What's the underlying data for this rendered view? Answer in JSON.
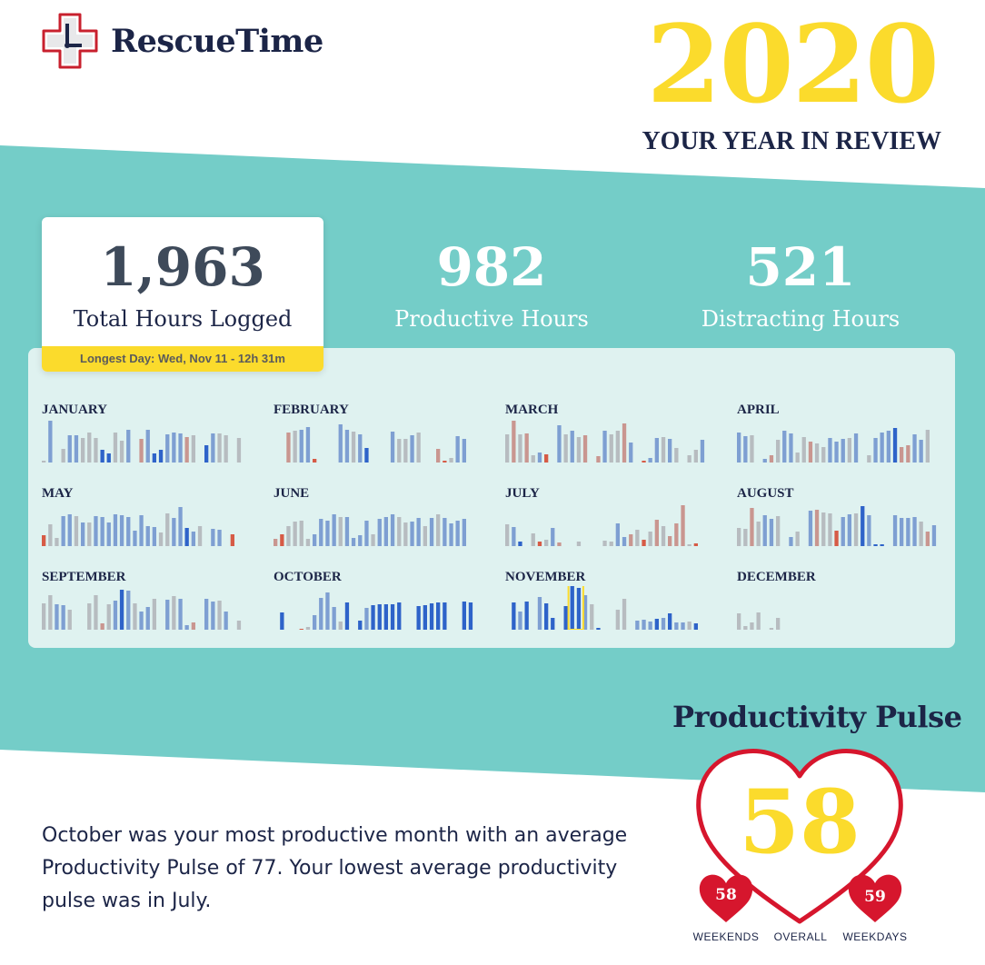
{
  "brand": {
    "name": "RescueTime",
    "logo_icon": "clock-cross-icon"
  },
  "header": {
    "year": "2020",
    "subtitle": "YOUR YEAR IN REVIEW"
  },
  "stats": {
    "total": {
      "value": "1,963",
      "label": "Total Hours Logged"
    },
    "productive": {
      "value": "982",
      "label": "Productive Hours"
    },
    "distracting": {
      "value": "521",
      "label": "Distracting Hours"
    },
    "longest_day": "Longest Day: Wed, Nov 11 - 12h 31m"
  },
  "colors": {
    "teal": "#74cdc8",
    "panel": "#dff2f0",
    "yellow": "#fbdb2c",
    "navy": "#1c2547",
    "heart_red": "#d6162d",
    "bar_gray": "#b7bcc0",
    "bar_lightblue": "#7e9fd2",
    "bar_blue": "#2e63c9",
    "bar_rose": "#c99690",
    "bar_red": "#d65b46"
  },
  "months": [
    {
      "name": "JANUARY",
      "bars": [
        [
          2,
          "g"
        ],
        [
          46,
          "lb"
        ],
        [
          0,
          "g"
        ],
        [
          15,
          "g"
        ],
        [
          30,
          "lb"
        ],
        [
          30,
          "lb"
        ],
        [
          27,
          "g"
        ],
        [
          33,
          "g"
        ],
        [
          27,
          "g"
        ],
        [
          14,
          "b"
        ],
        [
          10,
          "b"
        ],
        [
          33,
          "g"
        ],
        [
          24,
          "g"
        ],
        [
          36,
          "lb"
        ],
        [
          0,
          "g"
        ],
        [
          26,
          "r"
        ],
        [
          36,
          "lb"
        ],
        [
          10,
          "b"
        ],
        [
          14,
          "b"
        ],
        [
          31,
          "lb"
        ],
        [
          33,
          "lb"
        ],
        [
          32,
          "lb"
        ],
        [
          28,
          "r"
        ],
        [
          30,
          "g"
        ],
        [
          0,
          "g"
        ],
        [
          19,
          "b"
        ],
        [
          32,
          "lb"
        ],
        [
          32,
          "g"
        ],
        [
          30,
          "g"
        ],
        [
          0,
          "g"
        ],
        [
          27,
          "g"
        ]
      ]
    },
    {
      "name": "FEBRUARY",
      "bars": [
        [
          0,
          "g"
        ],
        [
          0,
          "g"
        ],
        [
          33,
          "r"
        ],
        [
          35,
          "g"
        ],
        [
          36,
          "lb"
        ],
        [
          39,
          "lb"
        ],
        [
          4,
          "rd"
        ],
        [
          0,
          "g"
        ],
        [
          0,
          "g"
        ],
        [
          0,
          "g"
        ],
        [
          42,
          "lb"
        ],
        [
          36,
          "lb"
        ],
        [
          34,
          "g"
        ],
        [
          31,
          "lb"
        ],
        [
          16,
          "b"
        ],
        [
          0,
          "g"
        ],
        [
          0,
          "g"
        ],
        [
          0,
          "g"
        ],
        [
          34,
          "lb"
        ],
        [
          26,
          "g"
        ],
        [
          26,
          "g"
        ],
        [
          30,
          "lb"
        ],
        [
          33,
          "g"
        ],
        [
          0,
          "g"
        ],
        [
          0,
          "g"
        ],
        [
          15,
          "r"
        ],
        [
          2,
          "rd"
        ],
        [
          5,
          "g"
        ],
        [
          29,
          "lb"
        ],
        [
          26,
          "lb"
        ]
      ]
    },
    {
      "name": "MARCH",
      "bars": [
        [
          31,
          "g"
        ],
        [
          46,
          "r"
        ],
        [
          31,
          "g"
        ],
        [
          32,
          "r"
        ],
        [
          8,
          "g"
        ],
        [
          11,
          "lb"
        ],
        [
          9,
          "rd"
        ],
        [
          0,
          "g"
        ],
        [
          41,
          "lb"
        ],
        [
          31,
          "g"
        ],
        [
          35,
          "lb"
        ],
        [
          28,
          "g"
        ],
        [
          30,
          "r"
        ],
        [
          0,
          "g"
        ],
        [
          7,
          "r"
        ],
        [
          35,
          "lb"
        ],
        [
          31,
          "g"
        ],
        [
          35,
          "g"
        ],
        [
          43,
          "r"
        ],
        [
          22,
          "lb"
        ],
        [
          0,
          "g"
        ],
        [
          2,
          "rd"
        ],
        [
          5,
          "lb"
        ],
        [
          27,
          "lb"
        ],
        [
          28,
          "g"
        ],
        [
          26,
          "lb"
        ],
        [
          16,
          "g"
        ],
        [
          0,
          "g"
        ],
        [
          8,
          "g"
        ],
        [
          14,
          "g"
        ],
        [
          25,
          "lb"
        ],
        [
          25,
          "lb"
        ]
      ]
    },
    {
      "name": "APRIL",
      "bars": [
        [
          33,
          "lb"
        ],
        [
          29,
          "lb"
        ],
        [
          30,
          "g"
        ],
        [
          0,
          "g"
        ],
        [
          4,
          "lb"
        ],
        [
          8,
          "r"
        ],
        [
          25,
          "g"
        ],
        [
          35,
          "lb"
        ],
        [
          32,
          "lb"
        ],
        [
          11,
          "g"
        ],
        [
          28,
          "g"
        ],
        [
          23,
          "r"
        ],
        [
          21,
          "g"
        ],
        [
          17,
          "g"
        ],
        [
          27,
          "lb"
        ],
        [
          23,
          "lb"
        ],
        [
          26,
          "lb"
        ],
        [
          27,
          "g"
        ],
        [
          32,
          "lb"
        ],
        [
          0,
          "g"
        ],
        [
          8,
          "g"
        ],
        [
          27,
          "lb"
        ],
        [
          33,
          "lb"
        ],
        [
          35,
          "lb"
        ],
        [
          38,
          "b"
        ],
        [
          17,
          "r"
        ],
        [
          19,
          "r"
        ],
        [
          31,
          "lb"
        ],
        [
          25,
          "lb"
        ],
        [
          36,
          "g"
        ]
      ]
    },
    {
      "name": "MAY",
      "bars": [
        [
          12,
          "rd"
        ],
        [
          24,
          "g"
        ],
        [
          9,
          "g"
        ],
        [
          33,
          "lb"
        ],
        [
          35,
          "lb"
        ],
        [
          33,
          "g"
        ],
        [
          26,
          "lb"
        ],
        [
          26,
          "g"
        ],
        [
          33,
          "lb"
        ],
        [
          32,
          "lb"
        ],
        [
          26,
          "lb"
        ],
        [
          35,
          "lb"
        ],
        [
          34,
          "lb"
        ],
        [
          32,
          "lb"
        ],
        [
          17,
          "lb"
        ],
        [
          34,
          "lb"
        ],
        [
          22,
          "lb"
        ],
        [
          21,
          "lb"
        ],
        [
          15,
          "g"
        ],
        [
          36,
          "g"
        ],
        [
          31,
          "lb"
        ],
        [
          43,
          "lb"
        ],
        [
          20,
          "b"
        ],
        [
          16,
          "lb"
        ],
        [
          22,
          "g"
        ],
        [
          0,
          "g"
        ],
        [
          19,
          "lb"
        ],
        [
          18,
          "lb"
        ],
        [
          0,
          "g"
        ],
        [
          13,
          "rd"
        ]
      ]
    },
    {
      "name": "JUNE",
      "bars": [
        [
          8,
          "r"
        ],
        [
          13,
          "rd"
        ],
        [
          22,
          "g"
        ],
        [
          27,
          "g"
        ],
        [
          28,
          "g"
        ],
        [
          8,
          "g"
        ],
        [
          13,
          "lb"
        ],
        [
          30,
          "lb"
        ],
        [
          28,
          "lb"
        ],
        [
          35,
          "lb"
        ],
        [
          32,
          "g"
        ],
        [
          32,
          "lb"
        ],
        [
          9,
          "lb"
        ],
        [
          12,
          "lb"
        ],
        [
          28,
          "lb"
        ],
        [
          13,
          "g"
        ],
        [
          30,
          "lb"
        ],
        [
          32,
          "lb"
        ],
        [
          35,
          "lb"
        ],
        [
          32,
          "g"
        ],
        [
          26,
          "g"
        ],
        [
          27,
          "lb"
        ],
        [
          31,
          "lb"
        ],
        [
          22,
          "g"
        ],
        [
          31,
          "lb"
        ],
        [
          35,
          "g"
        ],
        [
          31,
          "lb"
        ],
        [
          25,
          "lb"
        ],
        [
          28,
          "lb"
        ],
        [
          30,
          "lb"
        ]
      ]
    },
    {
      "name": "JULY",
      "bars": [
        [
          24,
          "g"
        ],
        [
          21,
          "lb"
        ],
        [
          5,
          "b"
        ],
        [
          0,
          "g"
        ],
        [
          14,
          "g"
        ],
        [
          5,
          "rd"
        ],
        [
          7,
          "g"
        ],
        [
          20,
          "lb"
        ],
        [
          4,
          "r"
        ],
        [
          0,
          "g"
        ],
        [
          0,
          "g"
        ],
        [
          5,
          "g"
        ],
        [
          0,
          "g"
        ],
        [
          0,
          "g"
        ],
        [
          0,
          "g"
        ],
        [
          6,
          "g"
        ],
        [
          5,
          "g"
        ],
        [
          25,
          "lb"
        ],
        [
          10,
          "lb"
        ],
        [
          13,
          "r"
        ],
        [
          18,
          "g"
        ],
        [
          7,
          "rd"
        ],
        [
          16,
          "g"
        ],
        [
          29,
          "r"
        ],
        [
          22,
          "g"
        ],
        [
          11,
          "r"
        ],
        [
          25,
          "r"
        ],
        [
          45,
          "r"
        ],
        [
          2,
          "g"
        ],
        [
          3,
          "rd"
        ],
        [
          0,
          "g"
        ],
        [
          8,
          "lb"
        ],
        [
          9,
          "lb"
        ],
        [
          11,
          "b"
        ],
        [
          8,
          "lb"
        ],
        [
          9,
          "b"
        ]
      ]
    },
    {
      "name": "AUGUST",
      "bars": [
        [
          20,
          "g"
        ],
        [
          19,
          "g"
        ],
        [
          42,
          "r"
        ],
        [
          27,
          "g"
        ],
        [
          34,
          "lb"
        ],
        [
          30,
          "lb"
        ],
        [
          33,
          "g"
        ],
        [
          0,
          "g"
        ],
        [
          10,
          "lb"
        ],
        [
          16,
          "g"
        ],
        [
          0,
          "g"
        ],
        [
          39,
          "lb"
        ],
        [
          40,
          "r"
        ],
        [
          37,
          "g"
        ],
        [
          36,
          "g"
        ],
        [
          17,
          "rd"
        ],
        [
          32,
          "lb"
        ],
        [
          35,
          "lb"
        ],
        [
          36,
          "g"
        ],
        [
          44,
          "b"
        ],
        [
          34,
          "lb"
        ],
        [
          2,
          "b"
        ],
        [
          2,
          "b"
        ],
        [
          0,
          "g"
        ],
        [
          34,
          "lb"
        ],
        [
          31,
          "lb"
        ],
        [
          31,
          "lb"
        ],
        [
          32,
          "lb"
        ],
        [
          27,
          "g"
        ],
        [
          16,
          "r"
        ],
        [
          23,
          "lb"
        ],
        [
          41,
          "g"
        ]
      ]
    },
    {
      "name": "SEPTEMBER",
      "bars": [
        [
          29,
          "g"
        ],
        [
          38,
          "g"
        ],
        [
          28,
          "lb"
        ],
        [
          27,
          "lb"
        ],
        [
          22,
          "g"
        ],
        [
          0,
          "g"
        ],
        [
          0,
          "g"
        ],
        [
          29,
          "g"
        ],
        [
          38,
          "g"
        ],
        [
          7,
          "r"
        ],
        [
          28,
          "g"
        ],
        [
          32,
          "lb"
        ],
        [
          44,
          "b"
        ],
        [
          43,
          "lb"
        ],
        [
          29,
          "g"
        ],
        [
          20,
          "lb"
        ],
        [
          25,
          "lb"
        ],
        [
          34,
          "g"
        ],
        [
          0,
          "g"
        ],
        [
          33,
          "lb"
        ],
        [
          37,
          "g"
        ],
        [
          34,
          "lb"
        ],
        [
          5,
          "lb"
        ],
        [
          8,
          "r"
        ],
        [
          0,
          "g"
        ],
        [
          34,
          "lb"
        ],
        [
          31,
          "lb"
        ],
        [
          32,
          "g"
        ],
        [
          20,
          "lb"
        ],
        [
          0,
          "g"
        ],
        [
          10,
          "g"
        ],
        [
          10,
          "g"
        ],
        [
          0,
          "g"
        ],
        [
          25,
          "lb"
        ]
      ]
    },
    {
      "name": "OCTOBER",
      "bars": [
        [
          0,
          "g"
        ],
        [
          19,
          "b"
        ],
        [
          0,
          "g"
        ],
        [
          0,
          "g"
        ],
        [
          1,
          "rd"
        ],
        [
          3,
          "g"
        ],
        [
          16,
          "lb"
        ],
        [
          35,
          "lb"
        ],
        [
          41,
          "lb"
        ],
        [
          25,
          "lb"
        ],
        [
          9,
          "g"
        ],
        [
          30,
          "b"
        ],
        [
          0,
          "g"
        ],
        [
          10,
          "b"
        ],
        [
          24,
          "lb"
        ],
        [
          27,
          "b"
        ],
        [
          28,
          "b"
        ],
        [
          28,
          "b"
        ],
        [
          28,
          "b"
        ],
        [
          30,
          "b"
        ],
        [
          0,
          "g"
        ],
        [
          0,
          "g"
        ],
        [
          26,
          "b"
        ],
        [
          27,
          "b"
        ],
        [
          29,
          "b"
        ],
        [
          30,
          "b"
        ],
        [
          30,
          "b"
        ],
        [
          0,
          "g"
        ],
        [
          0,
          "g"
        ],
        [
          31,
          "b"
        ],
        [
          30,
          "b"
        ],
        [
          27,
          "b"
        ],
        [
          32,
          "b"
        ],
        [
          31,
          "b"
        ],
        [
          0,
          "g"
        ],
        [
          0,
          "g"
        ]
      ]
    },
    {
      "name": "NOVEMBER",
      "bars": [
        [
          0,
          "g"
        ],
        [
          30,
          "b"
        ],
        [
          20,
          "lb"
        ],
        [
          31,
          "b"
        ],
        [
          0,
          "g"
        ],
        [
          36,
          "lb"
        ],
        [
          29,
          "b"
        ],
        [
          13,
          "b"
        ],
        [
          0,
          "g"
        ],
        [
          26,
          "b"
        ],
        [
          48,
          "b"
        ],
        [
          46,
          "b"
        ],
        [
          38,
          "lb"
        ],
        [
          28,
          "g"
        ],
        [
          2,
          "b"
        ],
        [
          0,
          "g"
        ],
        [
          0,
          "g"
        ],
        [
          22,
          "g"
        ],
        [
          34,
          "g"
        ],
        [
          0,
          "g"
        ],
        [
          10,
          "lb"
        ],
        [
          11,
          "lb"
        ],
        [
          9,
          "lb"
        ],
        [
          12,
          "b"
        ],
        [
          13,
          "lb"
        ],
        [
          18,
          "b"
        ],
        [
          8,
          "lb"
        ],
        [
          8,
          "lb"
        ],
        [
          9,
          "g"
        ],
        [
          7,
          "b"
        ],
        [
          0,
          "g"
        ],
        [
          12,
          "lb"
        ]
      ],
      "highlight_day": 11
    },
    {
      "name": "DECEMBER",
      "bars": [
        [
          18,
          "g"
        ],
        [
          4,
          "g"
        ],
        [
          8,
          "g"
        ],
        [
          19,
          "g"
        ],
        [
          0,
          "g"
        ],
        [
          2,
          "g"
        ],
        [
          13,
          "g"
        ]
      ]
    }
  ],
  "pulse": {
    "title": "Productivity Pulse",
    "overall": "58",
    "weekends": "58",
    "weekdays": "59",
    "weekends_label": "WEEKENDS",
    "overall_label": "OVERALL",
    "weekdays_label": "WEEKDAYS"
  },
  "summary": "October was your most productive month with an average Productivity Pulse of 77. Your lowest average productivity pulse was in July."
}
